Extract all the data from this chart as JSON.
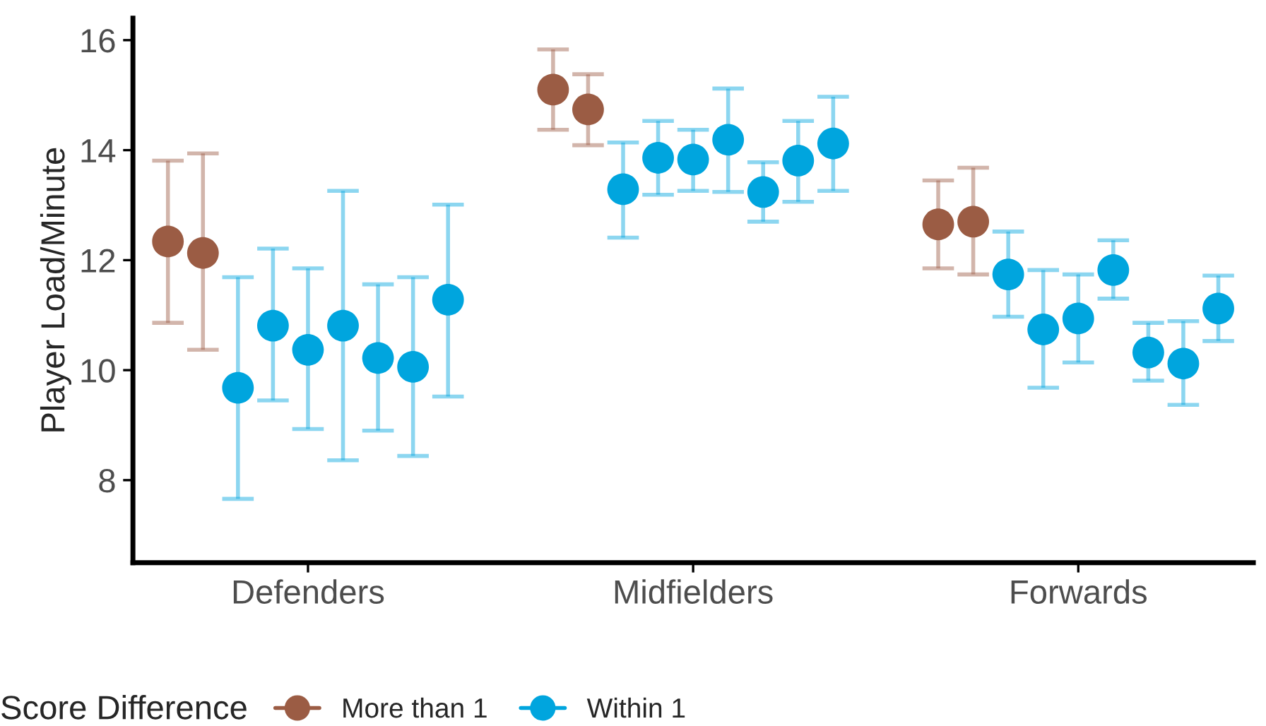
{
  "chart_data": {
    "type": "scatter",
    "ylabel": "Player Load/Minute",
    "legend_title": "Score Difference",
    "legend": "bottom",
    "marker": "circle",
    "grid": false,
    "categories": [
      null,
      null,
      null,
      null,
      "Defenders",
      null,
      null,
      null,
      null,
      null,
      null,
      null,
      null,
      null,
      null,
      "Midfielders",
      null,
      null,
      null,
      null,
      null,
      null,
      null,
      null,
      null,
      null,
      "Forwards",
      null,
      null,
      null,
      null
    ],
    "ylim": [
      6.5,
      16.4
    ],
    "yticks": [
      8,
      10,
      12,
      14,
      16
    ],
    "series": [
      {
        "name": "More than 1",
        "color": "#9b5c44",
        "values": [
          12.34,
          12.13,
          null,
          null,
          null,
          null,
          null,
          null,
          null,
          null,
          null,
          15.1,
          14.74,
          null,
          null,
          null,
          null,
          null,
          null,
          null,
          null,
          null,
          12.65,
          12.7,
          null,
          null,
          null,
          null,
          null,
          null,
          null
        ],
        "errors": [
          [
            10.86,
            13.81
          ],
          [
            10.37,
            13.94
          ],
          null,
          null,
          null,
          null,
          null,
          null,
          null,
          null,
          null,
          [
            14.37,
            15.83
          ],
          [
            14.09,
            15.38
          ],
          null,
          null,
          null,
          null,
          null,
          null,
          null,
          null,
          null,
          [
            11.85,
            13.45
          ],
          [
            11.74,
            13.68
          ],
          null,
          null,
          null,
          null,
          null,
          null,
          null
        ]
      },
      {
        "name": "Within 1",
        "color": "#00a5de",
        "values": [
          null,
          null,
          9.68,
          10.81,
          10.37,
          10.81,
          10.22,
          10.06,
          11.28,
          null,
          null,
          null,
          null,
          13.29,
          13.86,
          13.83,
          14.19,
          13.24,
          13.81,
          14.12,
          null,
          null,
          null,
          null,
          11.74,
          10.74,
          10.94,
          11.82,
          10.32,
          10.12,
          11.12
        ],
        "errors": [
          null,
          null,
          [
            7.66,
            11.69
          ],
          [
            9.45,
            12.21
          ],
          [
            8.93,
            11.85
          ],
          [
            8.36,
            13.26
          ],
          [
            8.9,
            11.56
          ],
          [
            8.44,
            11.69
          ],
          [
            9.52,
            13.01
          ],
          null,
          null,
          null,
          null,
          [
            12.41,
            14.14
          ],
          [
            13.19,
            14.53
          ],
          [
            13.26,
            14.37
          ],
          [
            13.24,
            15.12
          ],
          [
            12.7,
            13.78
          ],
          [
            13.06,
            14.53
          ],
          [
            13.26,
            14.97
          ],
          null,
          null,
          null,
          null,
          [
            10.97,
            12.52
          ],
          [
            9.68,
            11.82
          ],
          [
            10.14,
            11.74
          ],
          [
            11.3,
            12.36
          ],
          [
            9.81,
            10.86
          ],
          [
            9.37,
            10.89
          ],
          [
            10.53,
            11.72
          ]
        ]
      }
    ]
  }
}
